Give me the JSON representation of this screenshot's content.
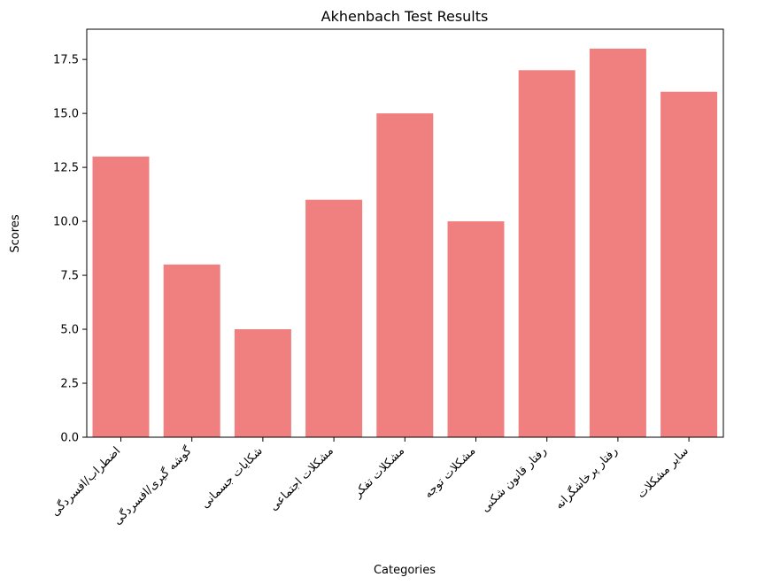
{
  "chart_data": {
    "type": "bar",
    "title": "Akhenbach Test Results",
    "xlabel": "Categories",
    "ylabel": "Scores",
    "categories": [
      "اضطراب/افسردگی",
      "گوشه گیری/افسردگی",
      "شکایات جسمانی",
      "مشکلات اجتماعی",
      "مشکلات تفکر",
      "مشکلات توجه",
      "رفتار قانون شکنی",
      "رفتار پرخاشگرانه",
      "سایر مشکلات"
    ],
    "values": [
      13,
      8,
      5,
      11,
      15,
      10,
      17,
      18,
      16
    ],
    "ylim": [
      0,
      18.9
    ],
    "yticks": [
      "0.0",
      "2.5",
      "5.0",
      "7.5",
      "10.0",
      "12.5",
      "15.0",
      "17.5"
    ],
    "bar_color": "#f08080",
    "grid": false,
    "legend": "none"
  }
}
